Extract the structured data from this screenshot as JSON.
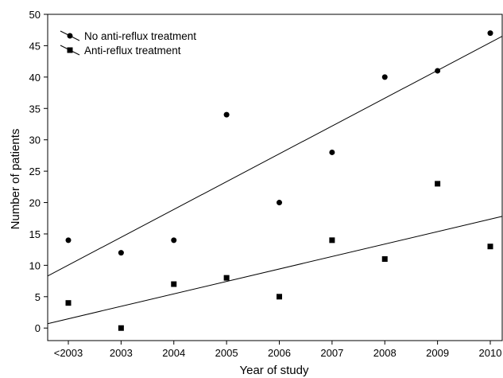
{
  "chart_data": {
    "type": "scatter",
    "title": "",
    "xlabel": "Year of study",
    "ylabel": "Number of patients",
    "categories": [
      "<2003",
      "2003",
      "2004",
      "2005",
      "2006",
      "2007",
      "2008",
      "2009",
      "2010"
    ],
    "ylim": [
      -2,
      50
    ],
    "yticks": [
      0,
      5,
      10,
      15,
      20,
      25,
      30,
      35,
      40,
      45,
      50
    ],
    "grid": false,
    "legend_position": "top-left",
    "series": [
      {
        "name": "No anti-reflux treatment",
        "marker": "circle",
        "values": [
          14,
          12,
          14,
          34,
          20,
          28,
          40,
          41,
          47
        ],
        "trend_line": {
          "start": 8.3,
          "end": 46.5
        }
      },
      {
        "name": "Anti-reflux treatment",
        "marker": "square",
        "values": [
          4,
          0,
          7,
          8,
          5,
          14,
          11,
          23,
          13
        ],
        "trend_line": {
          "start": 0.7,
          "end": 17.8
        }
      }
    ]
  }
}
